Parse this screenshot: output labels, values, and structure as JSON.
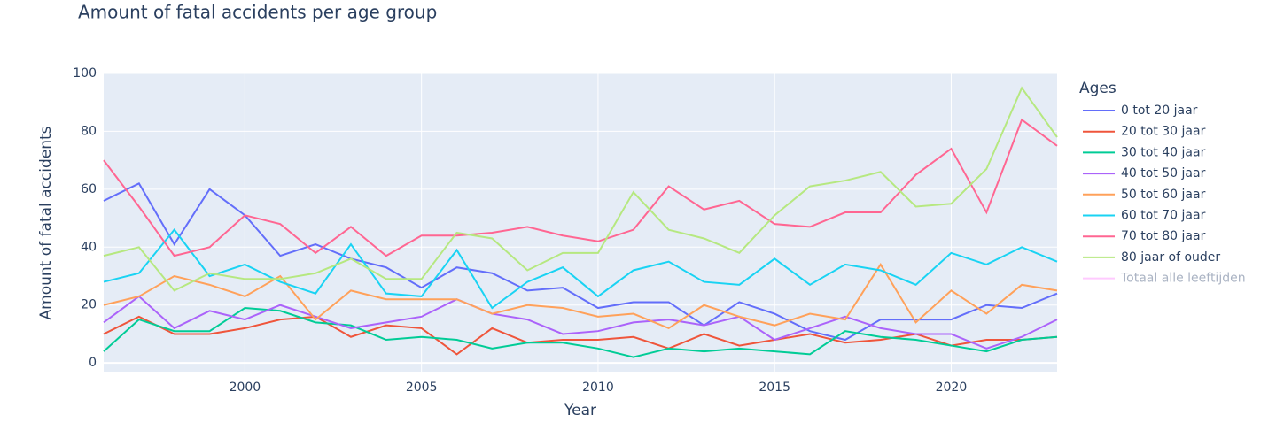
{
  "chart_data": {
    "type": "line",
    "title": "Amount of fatal accidents per age group",
    "x_label": "Year",
    "y_label": "Amount of fatal accidents",
    "legend_title": "Ages",
    "x": [
      1996,
      1997,
      1998,
      1999,
      2000,
      2001,
      2002,
      2003,
      2004,
      2005,
      2006,
      2007,
      2008,
      2009,
      2010,
      2011,
      2012,
      2013,
      2014,
      2015,
      2016,
      2017,
      2018,
      2019,
      2020,
      2021,
      2022,
      2023
    ],
    "xlim": [
      1996,
      2023
    ],
    "xticks": [
      2000,
      2005,
      2010,
      2015,
      2020
    ],
    "ylim": [
      -3,
      100
    ],
    "yticks": [
      0,
      20,
      40,
      60,
      80,
      100
    ],
    "grid": true,
    "series": [
      {
        "name": "0 tot 20 jaar",
        "color": "#636efa",
        "values": [
          56,
          62,
          41,
          60,
          51,
          37,
          41,
          36,
          33,
          26,
          33,
          31,
          25,
          26,
          19,
          21,
          21,
          13,
          21,
          17,
          11,
          8,
          15,
          15,
          15,
          20,
          19,
          24
        ]
      },
      {
        "name": "20 tot 30 jaar",
        "color": "#EF553B",
        "values": [
          10,
          16,
          10,
          10,
          12,
          15,
          16,
          9,
          13,
          12,
          3,
          12,
          7,
          8,
          8,
          9,
          5,
          10,
          6,
          8,
          10,
          7,
          8,
          10,
          6,
          8,
          8,
          9
        ]
      },
      {
        "name": "30 tot 40 jaar",
        "color": "#00cc96",
        "values": [
          4,
          15,
          11,
          11,
          19,
          18,
          14,
          13,
          8,
          9,
          8,
          5,
          7,
          7,
          5,
          2,
          5,
          4,
          5,
          4,
          3,
          11,
          9,
          8,
          6,
          4,
          8,
          9
        ]
      },
      {
        "name": "40 tot 50 jaar",
        "color": "#ab63fa",
        "values": [
          14,
          23,
          12,
          18,
          15,
          20,
          16,
          12,
          14,
          16,
          22,
          17,
          15,
          10,
          11,
          14,
          15,
          13,
          16,
          8,
          12,
          16,
          12,
          10,
          10,
          5,
          9,
          15
        ]
      },
      {
        "name": "50 tot 60 jaar",
        "color": "#FFA15A",
        "values": [
          20,
          23,
          30,
          27,
          23,
          30,
          15,
          25,
          22,
          22,
          22,
          17,
          20,
          19,
          16,
          17,
          12,
          20,
          16,
          13,
          17,
          15,
          34,
          14,
          25,
          17,
          27,
          25
        ]
      },
      {
        "name": "60 tot 70 jaar",
        "color": "#19d3f3",
        "values": [
          28,
          31,
          46,
          30,
          34,
          28,
          24,
          41,
          24,
          23,
          39,
          19,
          28,
          33,
          23,
          32,
          35,
          28,
          27,
          36,
          27,
          34,
          32,
          27,
          38,
          34,
          40,
          35
        ]
      },
      {
        "name": "70 tot 80 jaar",
        "color": "#FF6692",
        "values": [
          70,
          54,
          37,
          40,
          51,
          48,
          38,
          47,
          37,
          44,
          44,
          45,
          47,
          44,
          42,
          46,
          61,
          53,
          56,
          48,
          47,
          52,
          52,
          65,
          74,
          52,
          84,
          75
        ]
      },
      {
        "name": "80 jaar of ouder",
        "color": "#B6E880",
        "values": [
          37,
          40,
          25,
          31,
          29,
          29,
          31,
          36,
          29,
          29,
          45,
          43,
          32,
          38,
          38,
          59,
          46,
          43,
          38,
          51,
          61,
          63,
          66,
          54,
          55,
          67,
          95,
          78
        ]
      },
      {
        "name": "Totaal alle leeftijden",
        "color": "#FF97FF",
        "visible": false
      }
    ]
  }
}
